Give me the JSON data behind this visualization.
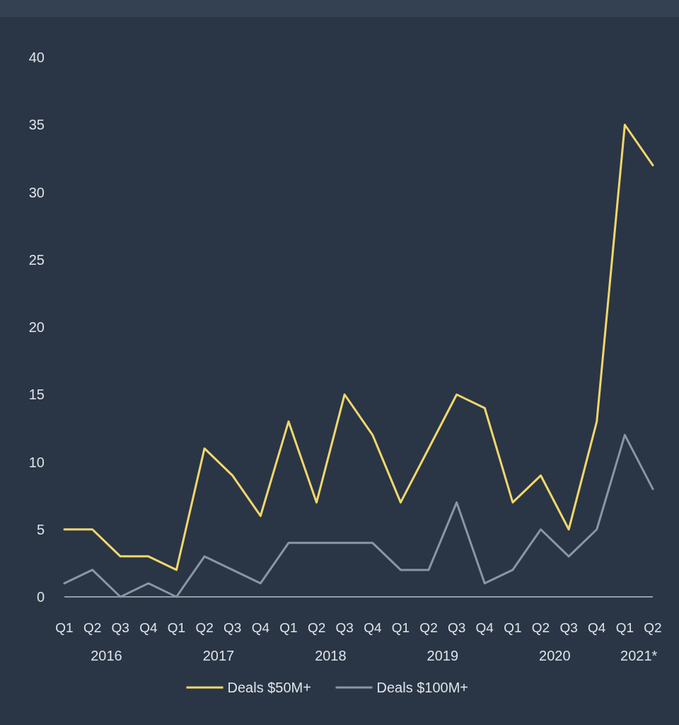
{
  "chart_data": {
    "type": "line",
    "categories": [
      "Q1",
      "Q2",
      "Q3",
      "Q4",
      "Q1",
      "Q2",
      "Q3",
      "Q4",
      "Q1",
      "Q2",
      "Q3",
      "Q4",
      "Q1",
      "Q2",
      "Q3",
      "Q4",
      "Q1",
      "Q2",
      "Q3",
      "Q4",
      "Q1",
      "Q2"
    ],
    "series": [
      {
        "name": "Deals $50M+",
        "color": "#f2d76b",
        "values": [
          5,
          5,
          3,
          3,
          2,
          11,
          9,
          6,
          13,
          7,
          15,
          12,
          7,
          11,
          15,
          14,
          7,
          9,
          5,
          13,
          35,
          32
        ]
      },
      {
        "name": "Deals $100M+",
        "color": "#8a96a3",
        "values": [
          1,
          2,
          0,
          1,
          0,
          3,
          2,
          1,
          4,
          4,
          4,
          4,
          2,
          2,
          7,
          1,
          2,
          5,
          3,
          5,
          12,
          8
        ]
      }
    ],
    "ylim": [
      0,
      40
    ],
    "yticks": [
      0,
      5,
      10,
      15,
      20,
      25,
      30,
      35,
      40
    ],
    "legend": "bottom",
    "grid": false,
    "marker": "none",
    "line_style": "solid",
    "annotations": [
      "2016",
      "2017",
      "2018",
      "2019",
      "2020",
      "2021*"
    ]
  }
}
